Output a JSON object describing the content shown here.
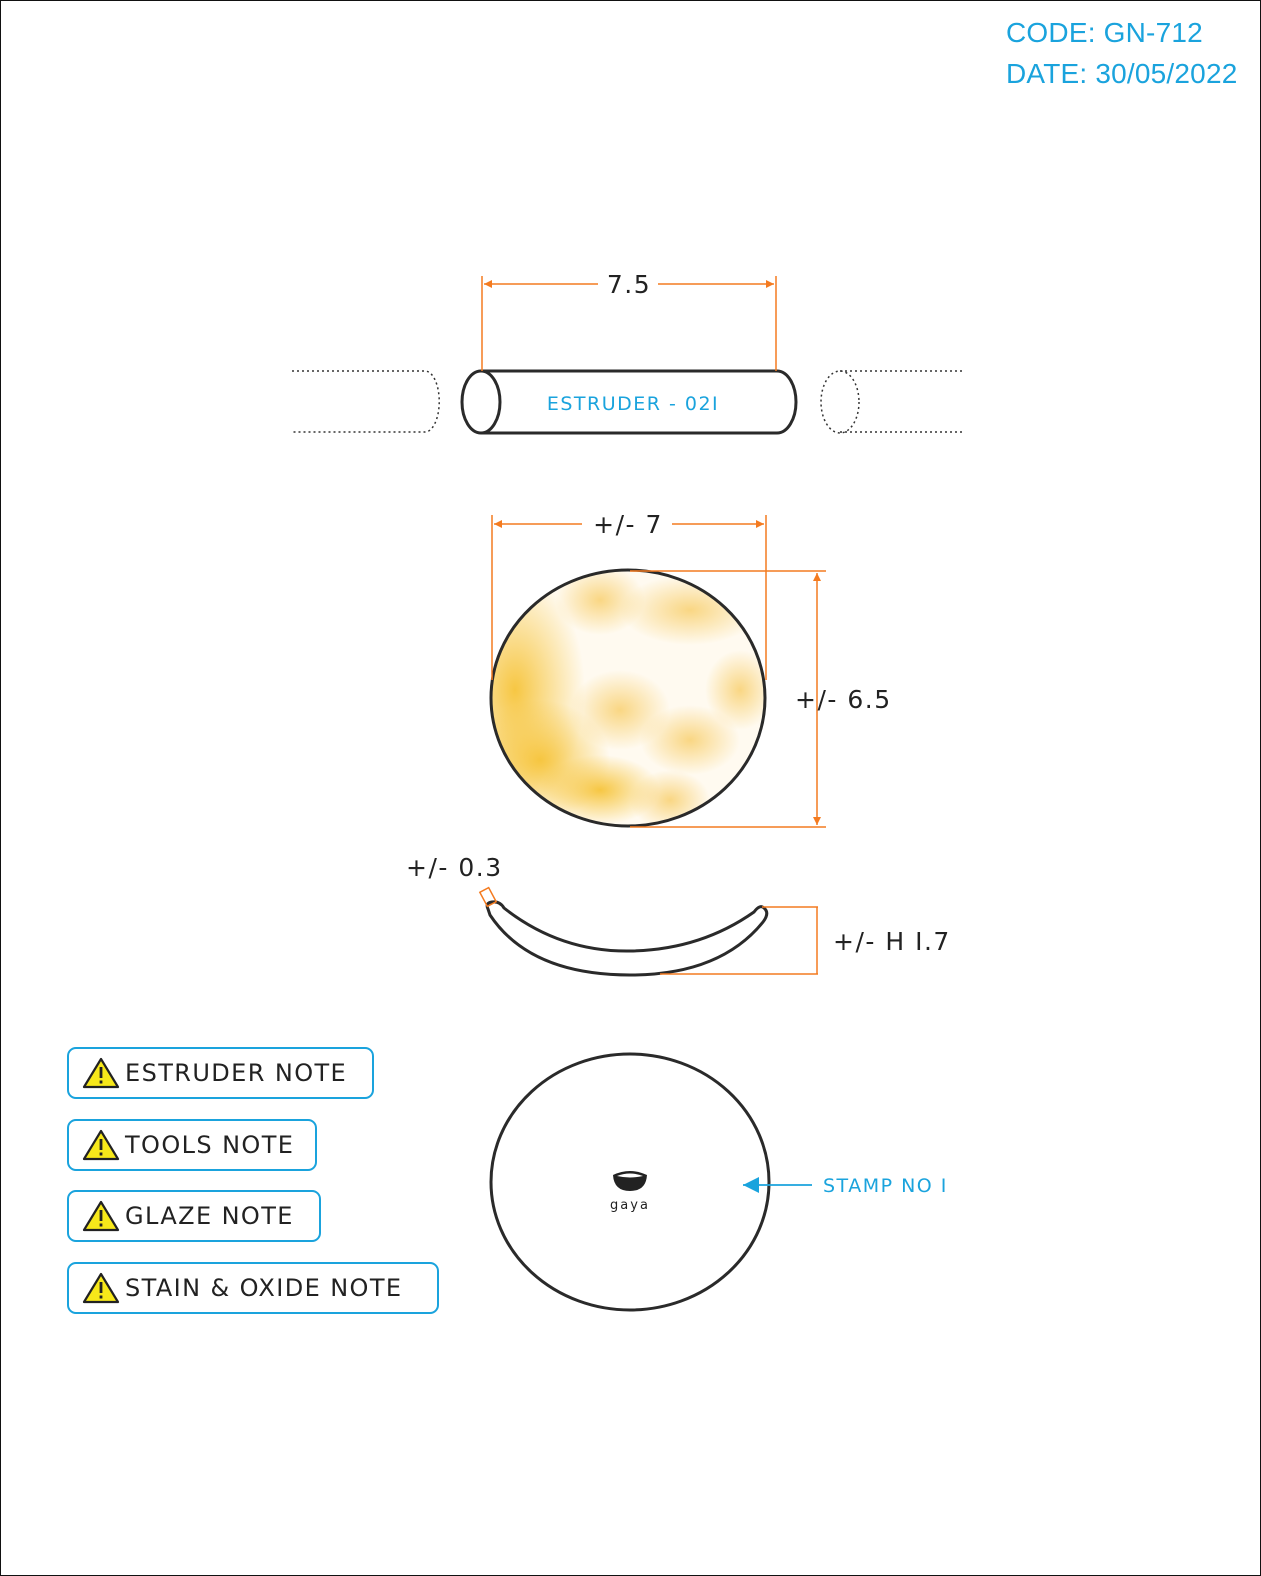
{
  "header": {
    "code": "CODE: GN-712",
    "date": "DATE: 30/05/2022"
  },
  "extruder": {
    "label": "ESTRUDER - 02I",
    "length_dim": "7.5"
  },
  "top_view": {
    "width_dim": "+/- 7",
    "height_dim": "+/- 6.5",
    "glaze_colors": [
      "#f6c93e",
      "#ffffff"
    ]
  },
  "side_view": {
    "thickness_dim": "+/- 0.3",
    "height_dim": "+/- H I.7"
  },
  "stamp": {
    "label": "STAMP NO I",
    "logo_text": "gaya"
  },
  "notes": [
    {
      "label": "ESTRUDER NOTE",
      "icon": "warning-icon"
    },
    {
      "label": "TOOLS NOTE",
      "icon": "warning-icon"
    },
    {
      "label": "GLAZE NOTE",
      "icon": "warning-icon"
    },
    {
      "label": "STAIN & OXIDE NOTE",
      "icon": "warning-icon"
    }
  ],
  "colors": {
    "dimension": "#f47b20",
    "accent": "#1aa3dd",
    "outline": "#2a2a2a",
    "warning": "#f7e81a"
  }
}
